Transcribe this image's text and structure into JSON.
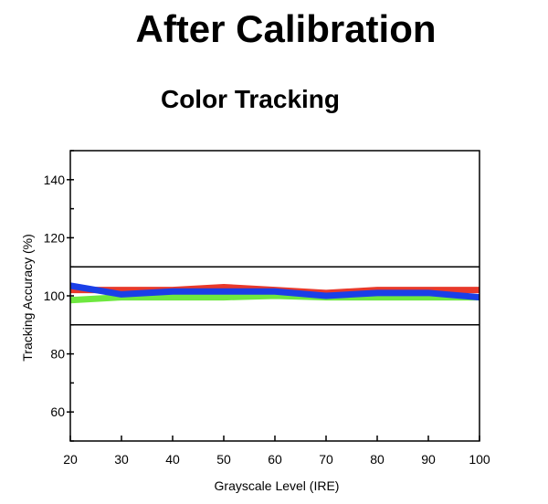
{
  "page": {
    "title": "After Calibration"
  },
  "chart_data": {
    "type": "line",
    "title": "Color Tracking",
    "xlabel": "Grayscale Level (IRE)",
    "ylabel": "Tracking Accuracy (%)",
    "xlim": [
      20,
      100
    ],
    "ylim": [
      50,
      150
    ],
    "x_ticks": [
      20,
      30,
      40,
      50,
      60,
      70,
      80,
      90,
      100
    ],
    "y_ticks": [
      60,
      80,
      100,
      120,
      140
    ],
    "y_minor_ticks": [
      50,
      70,
      90,
      110,
      130,
      150
    ],
    "reference_lines": [
      90,
      110
    ],
    "grid": false,
    "legend": "none",
    "x": [
      20,
      30,
      40,
      50,
      60,
      70,
      80,
      90,
      100
    ],
    "series": [
      {
        "color": "#e8392b",
        "values": [
          102,
          102,
          102,
          103,
          102,
          101,
          102,
          102,
          102
        ]
      },
      {
        "color": "#6ee83f",
        "values": [
          98.5,
          99.5,
          99.5,
          99.5,
          100,
          99.5,
          99.5,
          99.5,
          99.5
        ]
      },
      {
        "color": "#1a3fe8",
        "values": [
          103.5,
          100.5,
          101.5,
          101.5,
          101.5,
          100,
          101,
          101,
          99.5
        ]
      }
    ]
  }
}
